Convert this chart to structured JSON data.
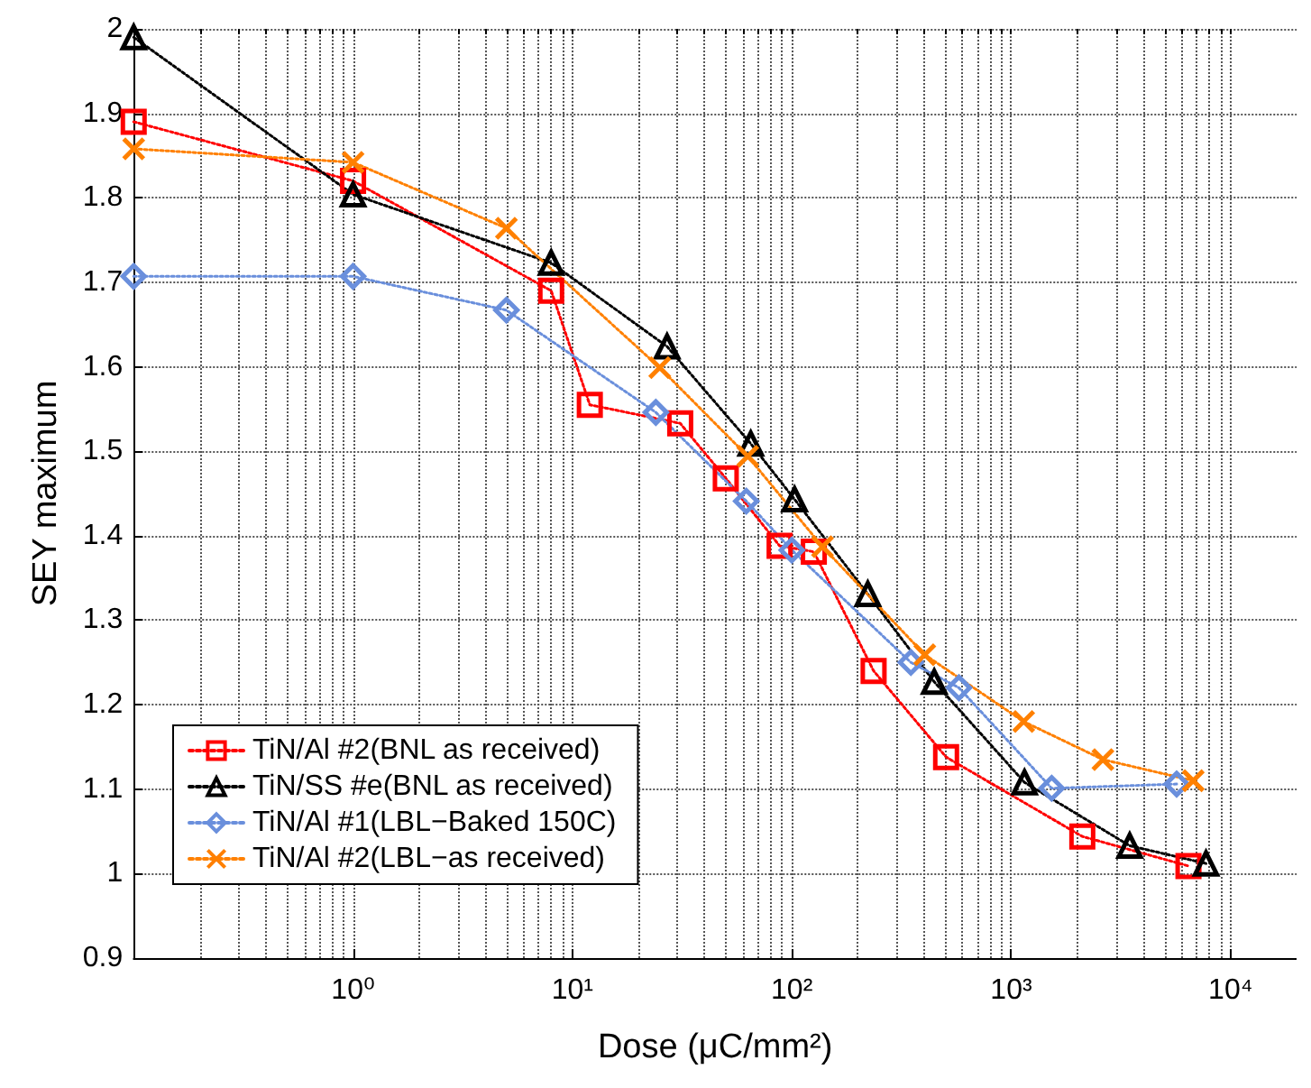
{
  "chart_data": {
    "type": "line",
    "xlabel": "Dose (μC/mm²)",
    "ylabel": "SEY maximum",
    "log": "x",
    "grid": true,
    "legend": "bottom left",
    "line_style": "dotted",
    "xlim": [
      0.1,
      20000
    ],
    "xticks": [
      {
        "value": 1,
        "label": "10⁰"
      },
      {
        "value": 10,
        "label": "10¹"
      },
      {
        "value": 100,
        "label": "10²"
      },
      {
        "value": 1000,
        "label": "10³"
      },
      {
        "value": 10000,
        "label": "10⁴"
      }
    ],
    "ylim": [
      0.9,
      2
    ],
    "yticks": [
      0.9,
      1,
      1.1,
      1.2,
      1.3,
      1.4,
      1.5,
      1.6,
      1.7,
      1.8,
      1.9,
      2
    ],
    "series": [
      {
        "name": "TiN/Al #2(BNL as received)",
        "color": "#ff0000",
        "marker": "square",
        "x": [
          0.1,
          1,
          8,
          12,
          31,
          50,
          88,
          126,
          236,
          505,
          2110,
          6430
        ],
        "values": [
          1.89,
          1.82,
          1.69,
          1.555,
          1.533,
          1.468,
          1.388,
          1.381,
          1.24,
          1.138,
          1.044,
          1.009
        ]
      },
      {
        "name": "TiN/SS #e(BNL as received)",
        "color": "#000000",
        "marker": "triangle",
        "x": [
          0.1,
          1,
          8,
          27,
          65,
          103,
          222,
          446,
          1150,
          3470,
          7730
        ],
        "values": [
          1.99,
          1.804,
          1.723,
          1.624,
          1.509,
          1.443,
          1.331,
          1.227,
          1.108,
          1.033,
          1.012
        ]
      },
      {
        "name": "TiN/Al #1(LBL−Baked 150C)",
        "color": "#6a8fdc",
        "marker": "diamond",
        "x": [
          0.1,
          1,
          5,
          24,
          62,
          100,
          349,
          578,
          1530,
          5680
        ],
        "values": [
          1.707,
          1.707,
          1.667,
          1.546,
          1.441,
          1.383,
          1.25,
          1.22,
          1.101,
          1.106
        ]
      },
      {
        "name": "TiN/Al #2(LBL−as received)",
        "color": "#ff8000",
        "marker": "cross",
        "x": [
          0.1,
          1,
          5,
          25,
          63,
          138,
          404,
          1140,
          2620,
          6760
        ],
        "values": [
          1.858,
          1.842,
          1.764,
          1.599,
          1.494,
          1.387,
          1.259,
          1.18,
          1.135,
          1.11
        ]
      }
    ]
  }
}
